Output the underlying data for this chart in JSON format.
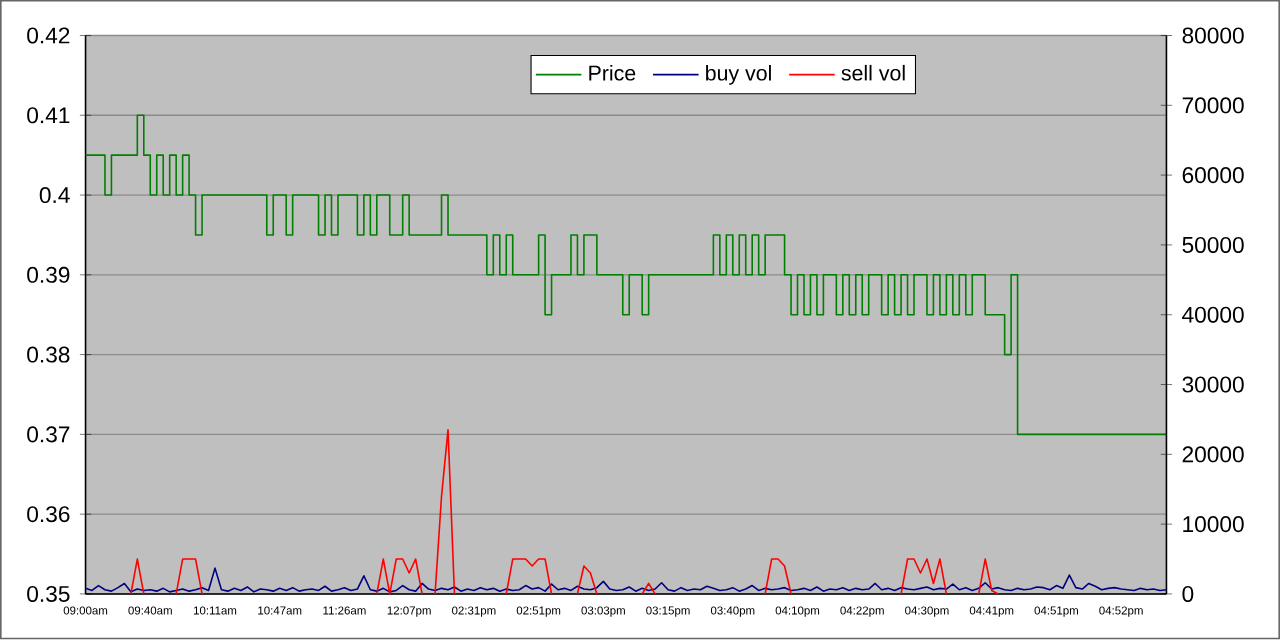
{
  "chart_data": {
    "type": "line",
    "categories": [
      "09:00am",
      null,
      null,
      null,
      null,
      null,
      null,
      null,
      null,
      null,
      "09:40am",
      null,
      null,
      null,
      null,
      null,
      null,
      null,
      null,
      null,
      "10:11am",
      null,
      null,
      null,
      null,
      null,
      null,
      null,
      null,
      null,
      "10:47am",
      null,
      null,
      null,
      null,
      null,
      null,
      null,
      null,
      null,
      "11:26am",
      null,
      null,
      null,
      null,
      null,
      null,
      null,
      null,
      null,
      "12:07pm",
      null,
      null,
      null,
      null,
      null,
      null,
      null,
      null,
      null,
      "02:31pm",
      null,
      null,
      null,
      null,
      null,
      null,
      null,
      null,
      null,
      "02:51pm",
      null,
      null,
      null,
      null,
      null,
      null,
      null,
      null,
      null,
      "03:03pm",
      null,
      null,
      null,
      null,
      null,
      null,
      null,
      null,
      null,
      "03:15pm",
      null,
      null,
      null,
      null,
      null,
      null,
      null,
      null,
      null,
      "03:40pm",
      null,
      null,
      null,
      null,
      null,
      null,
      null,
      null,
      null,
      "04:10pm",
      null,
      null,
      null,
      null,
      null,
      null,
      null,
      null,
      null,
      "04:22pm",
      null,
      null,
      null,
      null,
      null,
      null,
      null,
      null,
      null,
      "04:30pm",
      null,
      null,
      null,
      null,
      null,
      null,
      null,
      null,
      null,
      "04:41pm",
      null,
      null,
      null,
      null,
      null,
      null,
      null,
      null,
      null,
      "04:51pm",
      null,
      null,
      null,
      null,
      null,
      null,
      null,
      null,
      null,
      "04:52pm",
      null,
      null,
      null,
      null,
      null,
      null,
      null
    ],
    "series": [
      {
        "name": "Price",
        "type": "step",
        "color": "#008000",
        "values": [
          0.405,
          0.405,
          0.405,
          0.4,
          0.405,
          0.405,
          0.405,
          0.405,
          0.41,
          0.405,
          0.4,
          0.405,
          0.4,
          0.405,
          0.4,
          0.405,
          0.4,
          0.395,
          0.4,
          0.4,
          0.4,
          0.4,
          0.4,
          0.4,
          0.4,
          0.4,
          0.4,
          0.4,
          0.395,
          0.4,
          0.4,
          0.395,
          0.4,
          0.4,
          0.4,
          0.4,
          0.395,
          0.4,
          0.395,
          0.4,
          0.4,
          0.4,
          0.395,
          0.4,
          0.395,
          0.4,
          0.4,
          0.395,
          0.395,
          0.4,
          0.395,
          0.395,
          0.395,
          0.395,
          0.395,
          0.4,
          0.395,
          0.395,
          0.395,
          0.395,
          0.395,
          0.395,
          0.39,
          0.395,
          0.39,
          0.395,
          0.39,
          0.39,
          0.39,
          0.39,
          0.395,
          0.385,
          0.39,
          0.39,
          0.39,
          0.395,
          0.39,
          0.395,
          0.395,
          0.39,
          0.39,
          0.39,
          0.39,
          0.385,
          0.39,
          0.39,
          0.385,
          0.39,
          0.39,
          0.39,
          0.39,
          0.39,
          0.39,
          0.39,
          0.39,
          0.39,
          0.39,
          0.395,
          0.39,
          0.395,
          0.39,
          0.395,
          0.39,
          0.395,
          0.39,
          0.395,
          0.395,
          0.395,
          0.39,
          0.385,
          0.39,
          0.385,
          0.39,
          0.385,
          0.39,
          0.39,
          0.385,
          0.39,
          0.385,
          0.39,
          0.385,
          0.39,
          0.39,
          0.385,
          0.39,
          0.385,
          0.39,
          0.385,
          0.39,
          0.39,
          0.385,
          0.39,
          0.385,
          0.39,
          0.385,
          0.39,
          0.385,
          0.39,
          0.39,
          0.385,
          0.385,
          0.385,
          0.38,
          0.39,
          0.37,
          0.37,
          0.37,
          0.37,
          0.37,
          0.37,
          0.37,
          0.37,
          0.37,
          0.37,
          0.37,
          0.37,
          0.37,
          0.37,
          0.37,
          0.37,
          0.37,
          0.37,
          0.37,
          0.37,
          0.37,
          0.37,
          0.37,
          0.37
        ]
      },
      {
        "name": "buy vol",
        "type": "line",
        "axis": "y2",
        "color": "#000080",
        "values": [
          800,
          500,
          1200,
          600,
          400,
          900,
          1500,
          300,
          700,
          500,
          600,
          400,
          800,
          300,
          500,
          700,
          400,
          600,
          900,
          500,
          3700,
          600,
          400,
          800,
          500,
          1000,
          300,
          700,
          600,
          400,
          800,
          500,
          900,
          400,
          600,
          700,
          500,
          1100,
          400,
          600,
          900,
          500,
          700,
          2600,
          600,
          400,
          800,
          300,
          500,
          1200,
          600,
          400,
          1500,
          700,
          500,
          800,
          600,
          1000,
          400,
          700,
          500,
          900,
          600,
          800,
          400,
          700,
          500,
          600,
          1200,
          700,
          900,
          400,
          1400,
          600,
          800,
          500,
          1100,
          700,
          600,
          900,
          1800,
          700,
          500,
          600,
          1000,
          400,
          800,
          500,
          700,
          1600,
          600,
          400,
          900,
          500,
          700,
          600,
          1100,
          800,
          500,
          600,
          900,
          400,
          700,
          1200,
          500,
          800,
          600,
          700,
          900,
          500,
          600,
          800,
          500,
          1000,
          400,
          700,
          600,
          900,
          500,
          800,
          600,
          700,
          1500,
          600,
          800,
          500,
          900,
          700,
          600,
          800,
          1000,
          600,
          800,
          700,
          1400,
          600,
          900,
          500,
          800,
          1600,
          700,
          900,
          600,
          500,
          800,
          600,
          700,
          1000,
          900,
          600,
          1200,
          800,
          2700,
          900,
          700,
          1500,
          1100,
          600,
          800,
          900,
          700,
          600,
          500,
          800,
          600,
          700,
          500,
          600
        ]
      },
      {
        "name": "sell vol",
        "type": "line",
        "axis": "y2",
        "color": "#ff0000",
        "values": [
          null,
          null,
          null,
          null,
          null,
          null,
          null,
          0,
          5000,
          0,
          null,
          null,
          null,
          null,
          0,
          5000,
          5000,
          5000,
          0,
          null,
          null,
          null,
          null,
          null,
          null,
          null,
          null,
          null,
          null,
          null,
          null,
          null,
          null,
          null,
          null,
          null,
          null,
          null,
          null,
          null,
          null,
          null,
          null,
          null,
          null,
          0,
          5000,
          0,
          5000,
          5000,
          3000,
          5000,
          0,
          null,
          0,
          14000,
          23500,
          0,
          null,
          null,
          null,
          null,
          null,
          null,
          null,
          0,
          5000,
          5000,
          5000,
          4000,
          5000,
          5000,
          0,
          null,
          null,
          null,
          0,
          4000,
          3000,
          0,
          null,
          null,
          null,
          null,
          null,
          null,
          0,
          1500,
          0,
          null,
          null,
          null,
          null,
          null,
          null,
          null,
          null,
          null,
          null,
          null,
          null,
          null,
          null,
          null,
          null,
          0,
          5000,
          5000,
          4000,
          0,
          null,
          null,
          null,
          null,
          null,
          null,
          null,
          null,
          null,
          null,
          null,
          null,
          null,
          null,
          null,
          null,
          0,
          5000,
          5000,
          3000,
          5000,
          1500,
          5000,
          0,
          null,
          null,
          null,
          null,
          0,
          5000,
          500,
          0,
          null,
          null,
          null,
          null,
          null,
          null,
          null,
          null,
          null,
          null,
          null,
          null,
          null,
          null,
          null,
          null,
          null,
          null,
          null,
          null,
          null,
          null,
          null,
          null,
          null,
          null
        ]
      }
    ],
    "ylim": [
      0.35,
      0.42
    ],
    "yticks": [
      0.35,
      0.36,
      0.37,
      0.38,
      0.39,
      0.4,
      0.41,
      0.42
    ],
    "y2lim": [
      0,
      80000
    ],
    "y2ticks": [
      0,
      10000,
      20000,
      30000,
      40000,
      50000,
      60000,
      70000,
      80000
    ],
    "grid": "y",
    "legend": "top"
  }
}
